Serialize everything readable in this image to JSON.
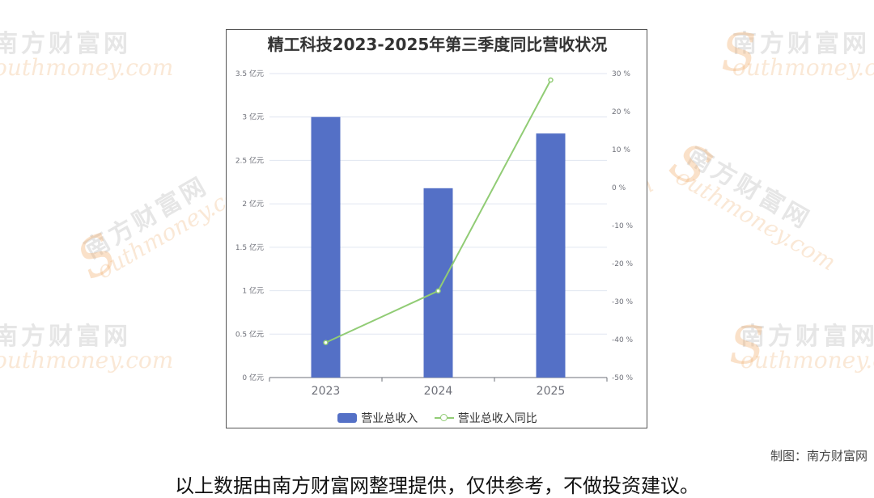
{
  "watermark": {
    "cn": "南方财富网",
    "en": "outhmoney.com",
    "logo_letter": "S"
  },
  "chart_data": {
    "type": "bar",
    "title": "精工科技2023-2025年第三季度同比营收状况",
    "categories": [
      "2023",
      "2024",
      "2025"
    ],
    "series": [
      {
        "name": "营业总收入",
        "type": "bar",
        "axis": "left",
        "unit": "亿元",
        "values": [
          3.0,
          2.18,
          2.81
        ],
        "color": "#5470c6"
      },
      {
        "name": "营业总收入同比",
        "type": "line",
        "axis": "right",
        "unit": "%",
        "values": [
          -40.8,
          -27.2,
          28.3
        ],
        "color": "#91cc75"
      }
    ],
    "y_left": {
      "ylim": [
        0,
        3.5
      ],
      "ticks": [
        0,
        0.5,
        1,
        1.5,
        2,
        2.5,
        3,
        3.5
      ],
      "tick_labels": [
        "0 亿元",
        "0.5 亿元",
        "1 亿元",
        "1.5 亿元",
        "2 亿元",
        "2.5 亿元",
        "3 亿元",
        "3.5 亿元"
      ]
    },
    "y_right": {
      "ylim": [
        -50,
        30
      ],
      "ticks": [
        -50,
        -40,
        -30,
        -20,
        -10,
        0,
        10,
        20,
        30
      ],
      "tick_labels": [
        "-50 %",
        "-40 %",
        "-30 %",
        "-20 %",
        "-10 %",
        "0 %",
        "10 %",
        "20 %",
        "30 %"
      ]
    },
    "grid": true,
    "legend_position": "bottom"
  },
  "credit": "制图：南方财富网",
  "footer_note": "以上数据由南方财富网整理提供，仅供参考，不做投资建议。"
}
